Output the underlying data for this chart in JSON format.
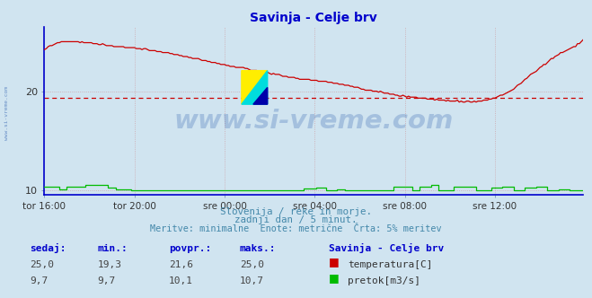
{
  "title": "Savinja - Celje brv",
  "title_color": "#0000cc",
  "bg_color": "#d0e4f0",
  "plot_bg_color": "#d0e4f0",
  "watermark_text": "www.si-vreme.com",
  "watermark_color": "#2255aa",
  "watermark_alpha": 0.25,
  "xlabel_texts": [
    "tor 16:00",
    "tor 20:00",
    "sre 00:00",
    "sre 04:00",
    "sre 08:00",
    "sre 12:00"
  ],
  "xtick_positions": [
    0,
    48,
    96,
    144,
    192,
    240
  ],
  "total_points": 288,
  "ylim": [
    9.5,
    26.5
  ],
  "yticks": [
    10,
    20
  ],
  "grid_color": "#cc6666",
  "grid_alpha": 0.5,
  "grid_linestyle": ":",
  "temp_color": "#cc0000",
  "flow_color": "#00bb00",
  "avg_line_color": "#cc0000",
  "avg_line_value": 19.3,
  "subtitle1": "Slovenija / reke in morje.",
  "subtitle2": "zadnji dan / 5 minut.",
  "subtitle3": "Meritve: minimalne  Enote: metrične  Črta: 5% meritev",
  "subtitle_color": "#4488aa",
  "footer_label_color": "#0000cc",
  "footer_title_color": "#0000cc",
  "footer_labels": [
    "sedaj:",
    "min.:",
    "povpr.:",
    "maks.:"
  ],
  "footer_temp": [
    "25,0",
    "19,3",
    "21,6",
    "25,0"
  ],
  "footer_flow": [
    "9,7",
    "9,7",
    "10,1",
    "10,7"
  ],
  "legend_title": "Savinja - Celje brv",
  "legend_temp": "temperatura[C]",
  "legend_flow": "pretok[m3/s]",
  "left_border_color": "#0000cc",
  "bottom_border_color": "#0000cc"
}
